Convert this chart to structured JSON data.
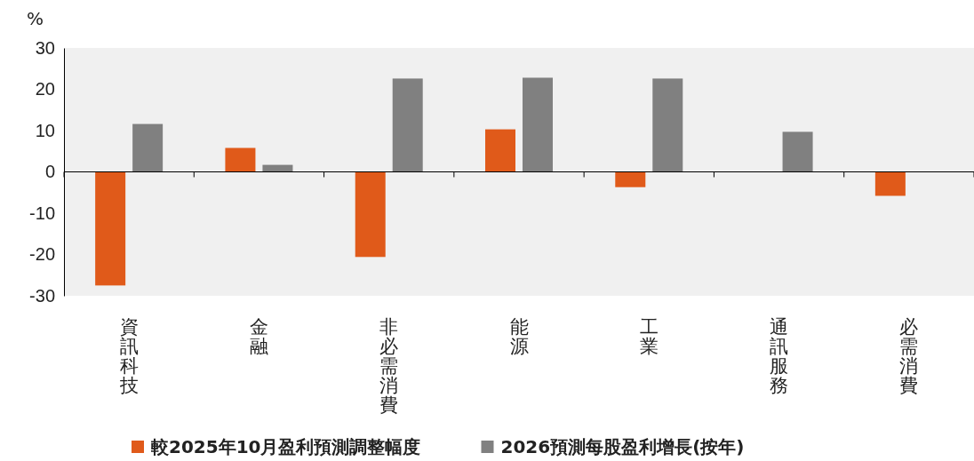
{
  "chart_data": {
    "type": "bar",
    "ylabel": "%",
    "categories": [
      "資訊科技",
      "金融",
      "非必需消費",
      "能源",
      "工業",
      "通訊服務",
      "必需消費"
    ],
    "series": [
      {
        "name": "較2025年10月盈利預測調整幅度",
        "color": "#e05a1a",
        "values": [
          -27.5,
          5.8,
          -20.6,
          10.3,
          -3.7,
          0,
          -5.8
        ]
      },
      {
        "name": "2026預測每股盈利增長(按年)",
        "color": "#808080",
        "values": [
          11.6,
          1.7,
          22.6,
          22.8,
          22.6,
          9.7,
          null
        ]
      }
    ],
    "ylim": [
      -30,
      30
    ],
    "yticks": [
      -30,
      -20,
      -10,
      0,
      10,
      20,
      30
    ],
    "legend": "bottom"
  }
}
